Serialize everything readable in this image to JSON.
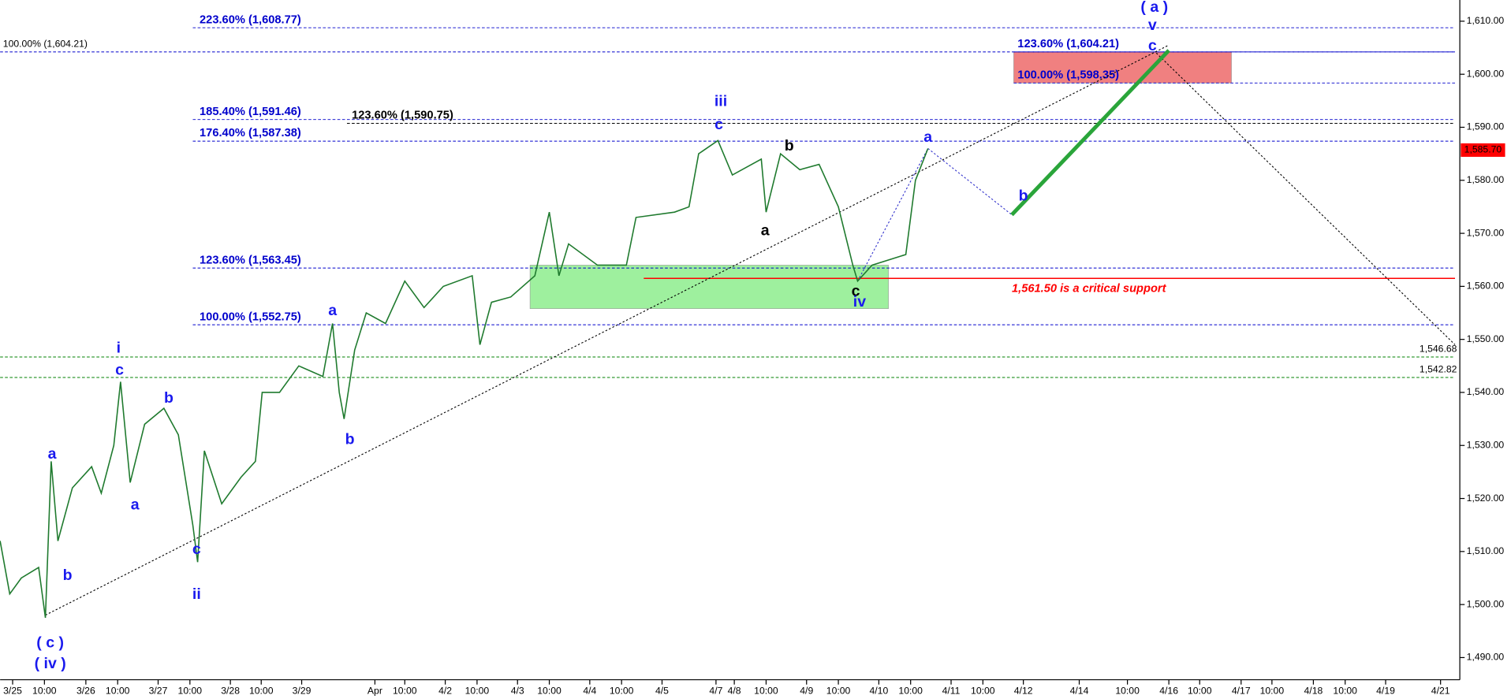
{
  "chart_data": {
    "type": "line",
    "xlim": [
      0,
      1510
    ],
    "ylim": [
      1486,
      1614
    ],
    "xticks": [
      {
        "value": 13,
        "label": "3/25"
      },
      {
        "value": 46,
        "label": "10:00"
      },
      {
        "value": 89,
        "label": "3/26"
      },
      {
        "value": 122,
        "label": "10:00"
      },
      {
        "value": 164,
        "label": "3/27"
      },
      {
        "value": 197,
        "label": "10:00"
      },
      {
        "value": 239,
        "label": "3/28"
      },
      {
        "value": 271,
        "label": "10:00"
      },
      {
        "value": 313,
        "label": "3/29"
      },
      {
        "value": 389,
        "label": "Apr"
      },
      {
        "value": 420,
        "label": "10:00"
      },
      {
        "value": 462,
        "label": "4/2"
      },
      {
        "value": 495,
        "label": "10:00"
      },
      {
        "value": 537,
        "label": "4/3"
      },
      {
        "value": 570,
        "label": "10:00"
      },
      {
        "value": 612,
        "label": "4/4"
      },
      {
        "value": 645,
        "label": "10:00"
      },
      {
        "value": 687,
        "label": "4/5"
      },
      {
        "value": 743,
        "label": "4/7"
      },
      {
        "value": 762,
        "label": "4/8"
      },
      {
        "value": 795,
        "label": "10:00"
      },
      {
        "value": 837,
        "label": "4/9"
      },
      {
        "value": 870,
        "label": "10:00"
      },
      {
        "value": 912,
        "label": "4/10"
      },
      {
        "value": 945,
        "label": "10:00"
      },
      {
        "value": 987,
        "label": "4/11"
      },
      {
        "value": 1020,
        "label": "10:00"
      },
      {
        "value": 1062,
        "label": "4/12"
      },
      {
        "value": 1120,
        "label": "4/14"
      },
      {
        "value": 1170,
        "label": "10:00"
      },
      {
        "value": 1213,
        "label": "4/16"
      },
      {
        "value": 1245,
        "label": "10:00"
      },
      {
        "value": 1288,
        "label": "4/17"
      },
      {
        "value": 1320,
        "label": "10:00"
      },
      {
        "value": 1363,
        "label": "4/18"
      },
      {
        "value": 1396,
        "label": "10:00"
      },
      {
        "value": 1438,
        "label": "4/19"
      },
      {
        "value": 1495,
        "label": "4/21"
      }
    ],
    "yticks": [
      {
        "value": 1490,
        "label": "1,490.00"
      },
      {
        "value": 1500,
        "label": "1,500.00"
      },
      {
        "value": 1510,
        "label": "1,510.00"
      },
      {
        "value": 1520,
        "label": "1,520.00"
      },
      {
        "value": 1530,
        "label": "1,530.00"
      },
      {
        "value": 1540,
        "label": "1,540.00"
      },
      {
        "value": 1550,
        "label": "1,550.00"
      },
      {
        "value": 1560,
        "label": "1,560.00"
      },
      {
        "value": 1570,
        "label": "1,570.00"
      },
      {
        "value": 1580,
        "label": "1,580.00"
      },
      {
        "value": 1590,
        "label": "1,590.00"
      },
      {
        "value": 1600,
        "label": "1,600.00"
      },
      {
        "value": 1610,
        "label": "1,610.00"
      }
    ],
    "series": [
      {
        "color": "#1f7a2e",
        "x": [
          0,
          10,
          22,
          40,
          47,
          53,
          60,
          75,
          95,
          105,
          118,
          125,
          135,
          150,
          170,
          185,
          200,
          205,
          212,
          230,
          250,
          265,
          272,
          290,
          310,
          335,
          345,
          352,
          357,
          368,
          380,
          400,
          420,
          440,
          460,
          490,
          498,
          510,
          530,
          555,
          570,
          580,
          590,
          620,
          650,
          660,
          700,
          715,
          725,
          745,
          760,
          790,
          795,
          810,
          830,
          850,
          870,
          885,
          890,
          905,
          940,
          950,
          963
        ],
        "values": [
          1512,
          1502,
          1505,
          1507,
          1497.5,
          1527,
          1512,
          1522,
          1526,
          1521,
          1530,
          1542,
          1523,
          1534,
          1537,
          1532,
          1515,
          1508,
          1529,
          1519,
          1524,
          1527,
          1540,
          1540,
          1545,
          1543,
          1553,
          1540,
          1535,
          1548,
          1555,
          1553,
          1561,
          1556,
          1560,
          1562,
          1549,
          1557,
          1558,
          1562,
          1574,
          1562,
          1568,
          1564,
          1564,
          1573,
          1574,
          1575,
          1585,
          1587.5,
          1581,
          1584,
          1574,
          1585,
          1582,
          1583,
          1575,
          1564,
          1561,
          1564,
          1566,
          1580,
          1586
        ]
      }
    ],
    "last_price": {
      "value": 1585.7,
      "label": "1,585.70",
      "color": "#ff0000"
    },
    "levels": [
      {
        "label": "223.60% (1,608.77)",
        "value": 1608.77,
        "color": "#0000cc",
        "x": [
          200,
          1510
        ]
      },
      {
        "label": "100.00% (1,604.21)",
        "value": 1604.21,
        "color": "#0000cc",
        "x": [
          0,
          1510
        ]
      },
      {
        "label": "123.60% (1,604.21)",
        "value": 1604.21,
        "color": "#0000cc",
        "x": [
          1052,
          1510
        ]
      },
      {
        "label": "100.00% (1,598.35)",
        "value": 1598.35,
        "color": "#0000cc",
        "x": [
          1052,
          1510
        ]
      },
      {
        "label": "185.40% (1,591.46)",
        "value": 1591.46,
        "color": "#0000cc",
        "x": [
          200,
          1510
        ]
      },
      {
        "label": "123.60% (1,590.75)",
        "value": 1590.75,
        "color": "#000000",
        "x": [
          360,
          1510
        ]
      },
      {
        "label": "176.40% (1,587.38)",
        "value": 1587.38,
        "color": "#0000cc",
        "x": [
          200,
          1510
        ]
      },
      {
        "label": "123.60% (1,563.45)",
        "value": 1563.45,
        "color": "#0000cc",
        "x": [
          200,
          1510
        ]
      },
      {
        "label": "1,561.50 is a critical support",
        "value": 1561.5,
        "color": "#ff0000",
        "x": [
          668,
          1510
        ]
      },
      {
        "label": "100.00% (1,552.75)",
        "value": 1552.75,
        "color": "#0000cc",
        "x": [
          200,
          1510
        ]
      },
      {
        "label": "1,546.68",
        "value": 1546.68,
        "color": "#008000",
        "x": [
          0,
          1510
        ]
      },
      {
        "label": "1,542.82",
        "value": 1542.82,
        "color": "#008000",
        "x": [
          0,
          1510
        ]
      }
    ],
    "zones": [
      {
        "x": [
          550,
          922
        ],
        "values": [
          1555.8,
          1564
        ],
        "color": "#9ef09e"
      },
      {
        "x": [
          1052,
          1278
        ],
        "values": [
          1598.35,
          1604.21
        ],
        "color": "#f08080"
      }
    ],
    "projections": [
      {
        "x": [
          47,
          1213
        ],
        "values": [
          1498,
          1605.5
        ],
        "color": "#000000",
        "style": "dotted"
      },
      {
        "x": [
          1200,
          1510
        ],
        "values": [
          1604,
          1549
        ],
        "color": "#000000",
        "style": "dotted"
      },
      {
        "x": [
          890,
          963
        ],
        "values": [
          1561,
          1586
        ],
        "color": "#3333cc",
        "style": "dotted"
      },
      {
        "x": [
          963,
          1050
        ],
        "values": [
          1586,
          1573.5
        ],
        "color": "#3333cc",
        "style": "dotted"
      },
      {
        "x": [
          1050,
          1213
        ],
        "values": [
          1573.5,
          1604.5
        ],
        "color": "#2aa53a",
        "style": "solid"
      }
    ],
    "wave_labels": [
      "( c )",
      "( iv )",
      "a",
      "b",
      "i",
      "c",
      "a",
      "b",
      "c",
      "ii",
      "a",
      "b",
      "iii",
      "c",
      "b",
      "a",
      "c",
      "iv",
      "a",
      "b",
      "( a )",
      "v",
      "c"
    ]
  }
}
